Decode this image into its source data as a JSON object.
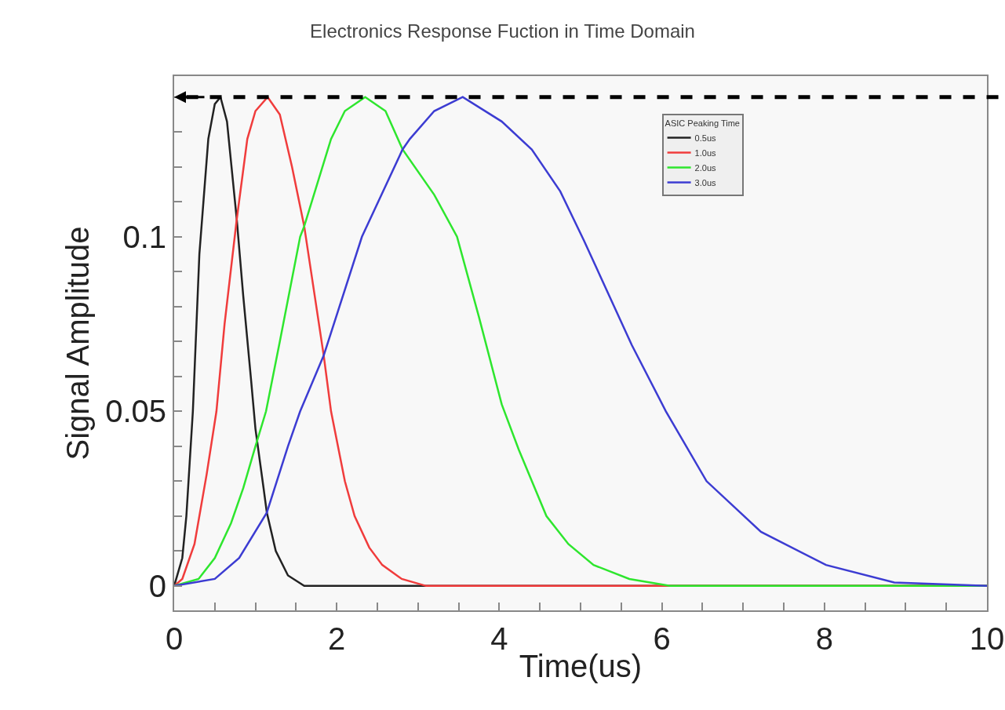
{
  "chart_data": {
    "type": "line",
    "title": "Electronics Response Fuction in Time Domain",
    "xlabel": "Time(us)",
    "ylabel": "Signal Amplitude",
    "legend_title": "ASIC Peaking Time",
    "xlim": [
      0,
      10
    ],
    "ylim": [
      -0.007,
      0.146
    ],
    "xticks": [
      0,
      {
        "value": 0.5,
        "label": null
      },
      {
        "value": 1,
        "label": null
      },
      {
        "value": 1.5,
        "label": null
      },
      2,
      {
        "value": 2.5,
        "label": null
      },
      {
        "value": 3,
        "label": null
      },
      {
        "value": 3.5,
        "label": null
      },
      4,
      {
        "value": 4.5,
        "label": null
      },
      {
        "value": 5,
        "label": null
      },
      {
        "value": 5.5,
        "label": null
      },
      6,
      {
        "value": 6.5,
        "label": null
      },
      {
        "value": 7,
        "label": null
      },
      {
        "value": 7.5,
        "label": null
      },
      8,
      {
        "value": 8.5,
        "label": null
      },
      {
        "value": 9,
        "label": null
      },
      {
        "value": 9.5,
        "label": null
      },
      10
    ],
    "yticks": [
      0,
      {
        "value": 0.01,
        "label": null
      },
      {
        "value": 0.02,
        "label": null
      },
      {
        "value": 0.03,
        "label": null
      },
      {
        "value": 0.04,
        "label": null
      },
      0.05,
      {
        "value": 0.06,
        "label": null
      },
      {
        "value": 0.07,
        "label": null
      },
      {
        "value": 0.08,
        "label": null
      },
      {
        "value": 0.09,
        "label": null
      },
      0.1,
      {
        "value": 0.11,
        "label": null
      },
      {
        "value": 0.12,
        "label": null
      },
      {
        "value": 0.13,
        "label": null
      },
      {
        "value": 0.14,
        "label": null
      }
    ],
    "legend": "top right",
    "grid": false,
    "marker": "none",
    "line_style": "solid",
    "ref_lines": [
      {
        "axis": "y",
        "value": 0.14,
        "color": "#000000",
        "line_style": "dashed"
      }
    ],
    "series": [
      {
        "name": "0.5us",
        "color": "#222222",
        "x": [
          0,
          0.1,
          0.15,
          0.23,
          0.31,
          0.42,
          0.5,
          0.57,
          0.65,
          0.77,
          0.85,
          0.95,
          1.0,
          1.1,
          1.14,
          1.25,
          1.4,
          1.6,
          10
        ],
        "values": [
          0,
          0.008,
          0.02,
          0.05,
          0.095,
          0.128,
          0.138,
          0.14,
          0.133,
          0.105,
          0.083,
          0.058,
          0.045,
          0.028,
          0.021,
          0.01,
          0.003,
          0,
          0
        ]
      },
      {
        "name": "1.0us",
        "color": "#f03c3c",
        "x": [
          0,
          0.1,
          0.25,
          0.4,
          0.52,
          0.62,
          0.77,
          0.9,
          1.0,
          1.15,
          1.3,
          1.45,
          1.6,
          1.84,
          1.93,
          2.1,
          2.22,
          2.4,
          2.56,
          2.8,
          3.1,
          10
        ],
        "values": [
          0,
          0.002,
          0.012,
          0.032,
          0.05,
          0.075,
          0.105,
          0.128,
          0.136,
          0.14,
          0.135,
          0.12,
          0.103,
          0.066,
          0.05,
          0.03,
          0.02,
          0.011,
          0.006,
          0.002,
          0,
          0
        ]
      },
      {
        "name": "2.0us",
        "color": "#2ee62e",
        "x": [
          0,
          0.3,
          0.5,
          0.7,
          0.85,
          1.0,
          1.13,
          1.3,
          1.55,
          1.6,
          1.93,
          2.1,
          2.35,
          2.6,
          2.81,
          3.2,
          3.48,
          3.75,
          4.03,
          4.24,
          4.58,
          4.85,
          5.16,
          5.6,
          6.1,
          10
        ],
        "values": [
          0,
          0.002,
          0.008,
          0.018,
          0.028,
          0.04,
          0.05,
          0.07,
          0.1,
          0.103,
          0.128,
          0.136,
          0.14,
          0.136,
          0.125,
          0.112,
          0.1,
          0.077,
          0.052,
          0.039,
          0.02,
          0.012,
          0.006,
          0.002,
          0,
          0
        ]
      },
      {
        "name": "3.0us",
        "color": "#3c3cd2",
        "x": [
          0,
          0.5,
          0.8,
          1.14,
          1.4,
          1.55,
          1.84,
          2.31,
          2.81,
          2.9,
          3.2,
          3.55,
          4.03,
          4.4,
          4.75,
          5.04,
          5.63,
          6.05,
          6.55,
          7.22,
          8.02,
          8.86,
          10
        ],
        "values": [
          0,
          0.002,
          0.008,
          0.021,
          0.04,
          0.05,
          0.066,
          0.1,
          0.125,
          0.128,
          0.136,
          0.14,
          0.133,
          0.125,
          0.113,
          0.099,
          0.069,
          0.05,
          0.03,
          0.0155,
          0.006,
          0.001,
          0
        ]
      }
    ]
  }
}
